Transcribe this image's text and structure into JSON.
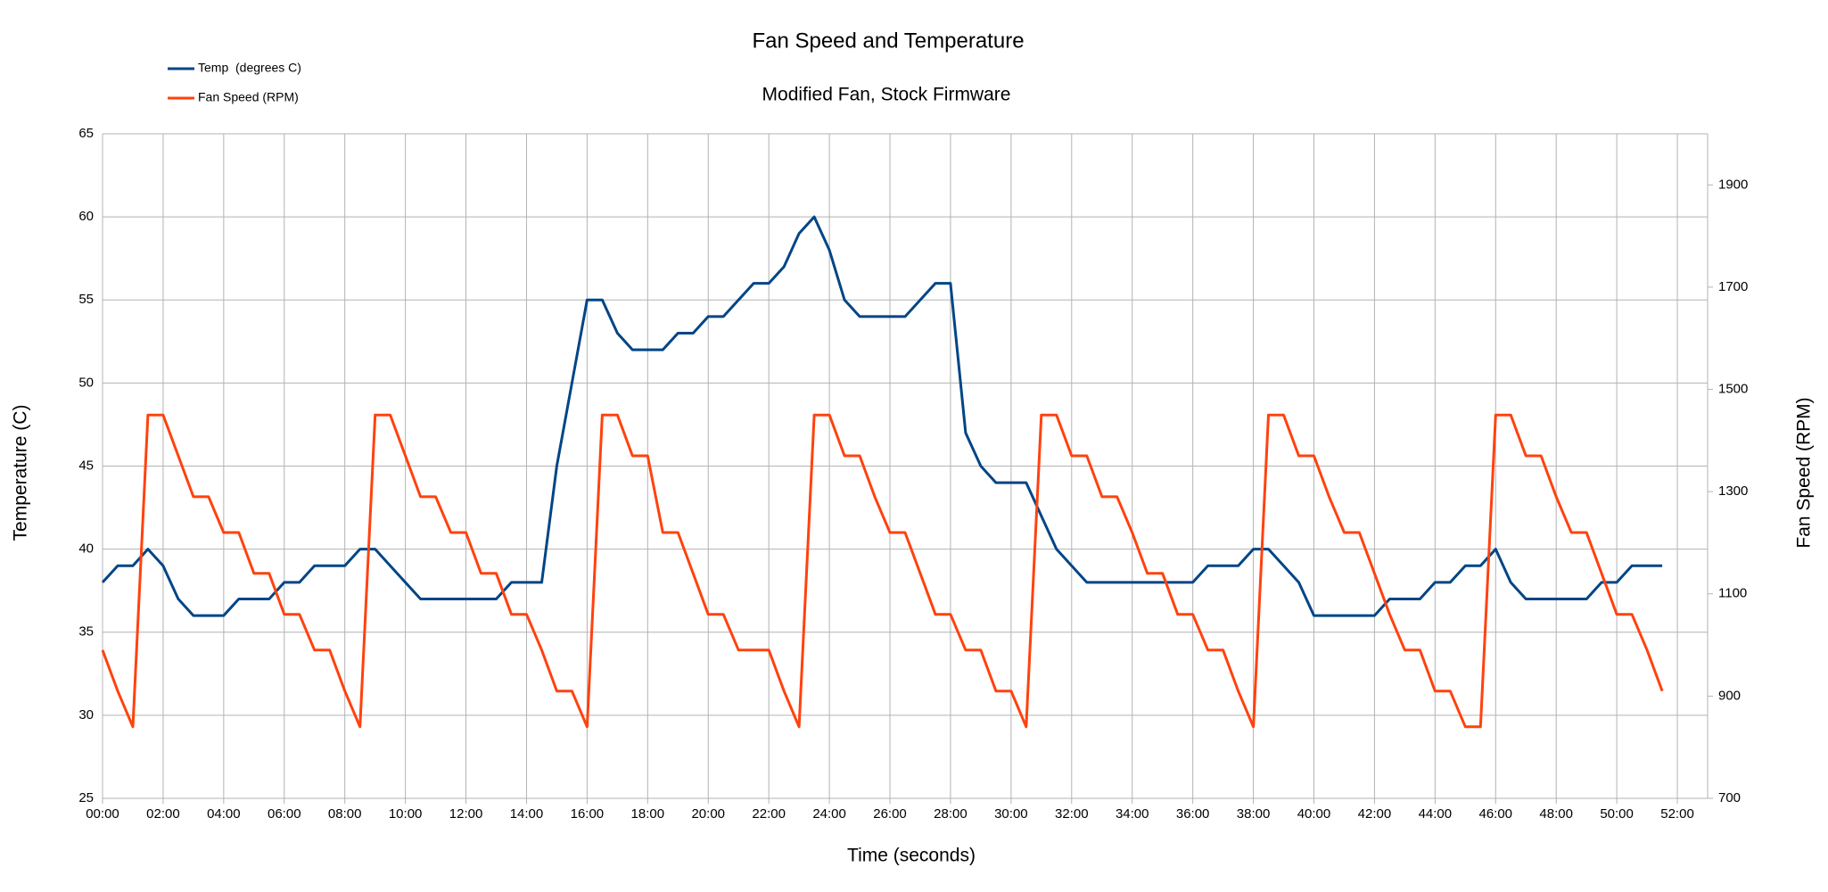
{
  "chart_data": {
    "type": "line",
    "title": "Fan Speed and Temperature",
    "subtitle": "Modified Fan, Stock Firmware",
    "x_label": "Time (seconds)",
    "y_label": "Temperature (C)",
    "y2_label": "Fan Speed (RPM)",
    "grid": true,
    "legend": "top-left",
    "x": [
      0,
      0.5,
      1,
      1.5,
      2,
      2.5,
      3,
      3.5,
      4,
      4.5,
      5,
      5.5,
      6,
      6.5,
      7,
      7.5,
      8,
      8.5,
      9,
      9.5,
      10,
      10.5,
      11,
      11.5,
      12,
      12.5,
      13,
      13.5,
      14,
      14.5,
      15,
      15.5,
      16,
      16.5,
      17,
      17.5,
      18,
      18.5,
      19,
      19.5,
      20,
      20.5,
      21,
      21.5,
      22,
      22.5,
      23,
      23.5,
      24,
      24.5,
      25,
      25.5,
      26,
      26.5,
      27,
      27.5,
      28,
      28.5,
      29,
      29.5,
      30,
      30.5,
      31,
      31.5,
      32,
      32.5,
      33,
      33.5,
      34,
      34.5,
      35,
      35.5,
      36,
      36.5,
      37,
      37.5,
      38,
      38.5,
      39,
      39.5,
      40,
      40.5,
      41,
      41.5,
      42,
      42.5,
      43,
      43.5,
      44,
      44.5,
      45,
      45.5,
      46,
      46.5,
      47,
      47.5,
      48,
      48.5,
      49,
      49.5,
      50,
      50.5,
      51,
      51.5
    ],
    "series": [
      {
        "name": "Temp  (degrees C)",
        "color": "#004586",
        "values": [
          38,
          39,
          39,
          40,
          39,
          37,
          36,
          36,
          36,
          37,
          37,
          37,
          38,
          38,
          39,
          39,
          39,
          40,
          40,
          39,
          38,
          37,
          37,
          37,
          37,
          37,
          37,
          38,
          38,
          38,
          45,
          50,
          55,
          55,
          53,
          52,
          52,
          52,
          53,
          53,
          54,
          54,
          55,
          56,
          56,
          57,
          59,
          60,
          58,
          55,
          54,
          54,
          54,
          54,
          55,
          56,
          56,
          47,
          45,
          44,
          44,
          44,
          42,
          40,
          39,
          38,
          38,
          38,
          38,
          38,
          38,
          38,
          38,
          39,
          39,
          39,
          40,
          40,
          39,
          38,
          36,
          36,
          36,
          36,
          36,
          37,
          37,
          37,
          38,
          38,
          39,
          39,
          40,
          38,
          37,
          37,
          37,
          37,
          37,
          38,
          38,
          39,
          39,
          39
        ]
      },
      {
        "name": "Fan Speed (RPM)",
        "color": "#ff420e",
        "axis": "y2",
        "values": [
          990,
          910,
          840,
          1450,
          1450,
          1370,
          1290,
          1290,
          1220,
          1220,
          1140,
          1140,
          1060,
          1060,
          990,
          990,
          910,
          840,
          1450,
          1450,
          1370,
          1290,
          1290,
          1220,
          1220,
          1140,
          1140,
          1060,
          1060,
          990,
          910,
          910,
          840,
          1450,
          1450,
          1370,
          1370,
          1220,
          1220,
          1140,
          1060,
          1060,
          990,
          990,
          990,
          910,
          840,
          1450,
          1450,
          1370,
          1370,
          1290,
          1220,
          1220,
          1140,
          1060,
          1060,
          990,
          990,
          910,
          910,
          840,
          1450,
          1450,
          1370,
          1370,
          1290,
          1290,
          1220,
          1140,
          1140,
          1060,
          1060,
          990,
          990,
          910,
          840,
          1450,
          1450,
          1370,
          1370,
          1290,
          1220,
          1220,
          1140,
          1060,
          990,
          990,
          910,
          910,
          840,
          840,
          1450,
          1450,
          1370,
          1370,
          1290,
          1220,
          1220,
          1140,
          1060,
          1060,
          990,
          910
        ]
      }
    ],
    "xlim": [
      0,
      53
    ],
    "xticks": [
      {
        "value": 0,
        "label": "00:00"
      },
      {
        "value": 2,
        "label": "02:00"
      },
      {
        "value": 4,
        "label": "04:00"
      },
      {
        "value": 6,
        "label": "06:00"
      },
      {
        "value": 8,
        "label": "08:00"
      },
      {
        "value": 10,
        "label": "10:00"
      },
      {
        "value": 12,
        "label": "12:00"
      },
      {
        "value": 14,
        "label": "14:00"
      },
      {
        "value": 16,
        "label": "16:00"
      },
      {
        "value": 18,
        "label": "18:00"
      },
      {
        "value": 20,
        "label": "20:00"
      },
      {
        "value": 22,
        "label": "22:00"
      },
      {
        "value": 24,
        "label": "24:00"
      },
      {
        "value": 26,
        "label": "26:00"
      },
      {
        "value": 28,
        "label": "28:00"
      },
      {
        "value": 30,
        "label": "30:00"
      },
      {
        "value": 32,
        "label": "32:00"
      },
      {
        "value": 34,
        "label": "34:00"
      },
      {
        "value": 36,
        "label": "36:00"
      },
      {
        "value": 38,
        "label": "38:00"
      },
      {
        "value": 40,
        "label": "40:00"
      },
      {
        "value": 42,
        "label": "42:00"
      },
      {
        "value": 44,
        "label": "44:00"
      },
      {
        "value": 46,
        "label": "46:00"
      },
      {
        "value": 48,
        "label": "48:00"
      },
      {
        "value": 50,
        "label": "50:00"
      },
      {
        "value": 52,
        "label": "52:00"
      }
    ],
    "ylim": [
      25,
      65
    ],
    "yticks": [
      25,
      30,
      35,
      40,
      45,
      50,
      55,
      60,
      65
    ],
    "y2lim": [
      700,
      2000
    ],
    "y2ticks": [
      700,
      900,
      1100,
      1300,
      1500,
      1700,
      1900
    ]
  }
}
